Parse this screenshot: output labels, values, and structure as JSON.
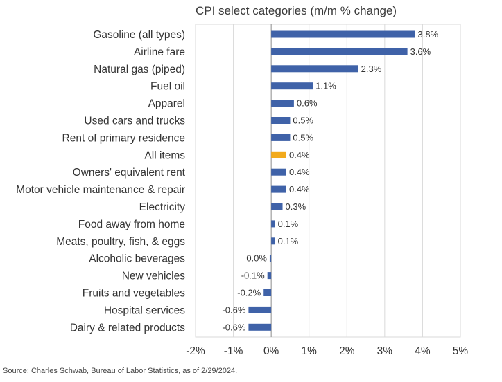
{
  "chart_data": {
    "type": "bar",
    "orientation": "horizontal",
    "title": "CPI select categories (m/m % change)",
    "source": "Source: Charles Schwab, Bureau of Labor Statistics, as of 2/29/2024.",
    "xlim": [
      -2,
      5
    ],
    "xticks": [
      "-2%",
      "-1%",
      "0%",
      "1%",
      "2%",
      "3%",
      "4%",
      "5%"
    ],
    "grid": true,
    "bar_color": "#3f62a8",
    "highlight_color": "#f2aa1c",
    "categories": [
      "Gasoline (all types)",
      "Airline fare",
      "Natural gas (piped)",
      "Fuel oil",
      "Apparel",
      "Used cars and trucks",
      "Rent of primary residence",
      "All items",
      "Owners' equivalent rent",
      "Motor vehicle maintenance & repair",
      "Electricity",
      "Food away from home",
      "Meats, poultry, fish, & eggs",
      "Alcoholic beverages",
      "New vehicles",
      "Fruits and vegetables",
      "Hospital services",
      "Dairy & related products"
    ],
    "values": [
      3.8,
      3.6,
      2.3,
      1.1,
      0.6,
      0.5,
      0.5,
      0.4,
      0.4,
      0.4,
      0.3,
      0.1,
      0.1,
      -0.04,
      -0.1,
      -0.2,
      -0.6,
      -0.6
    ],
    "data_labels": [
      "3.8%",
      "3.6%",
      "2.3%",
      "1.1%",
      "0.6%",
      "0.5%",
      "0.5%",
      "0.4%",
      "0.4%",
      "0.4%",
      "0.3%",
      "0.1%",
      "0.1%",
      "0.0%",
      "-0.1%",
      "-0.2%",
      "-0.6%",
      "-0.6%"
    ],
    "highlight": "All items"
  }
}
